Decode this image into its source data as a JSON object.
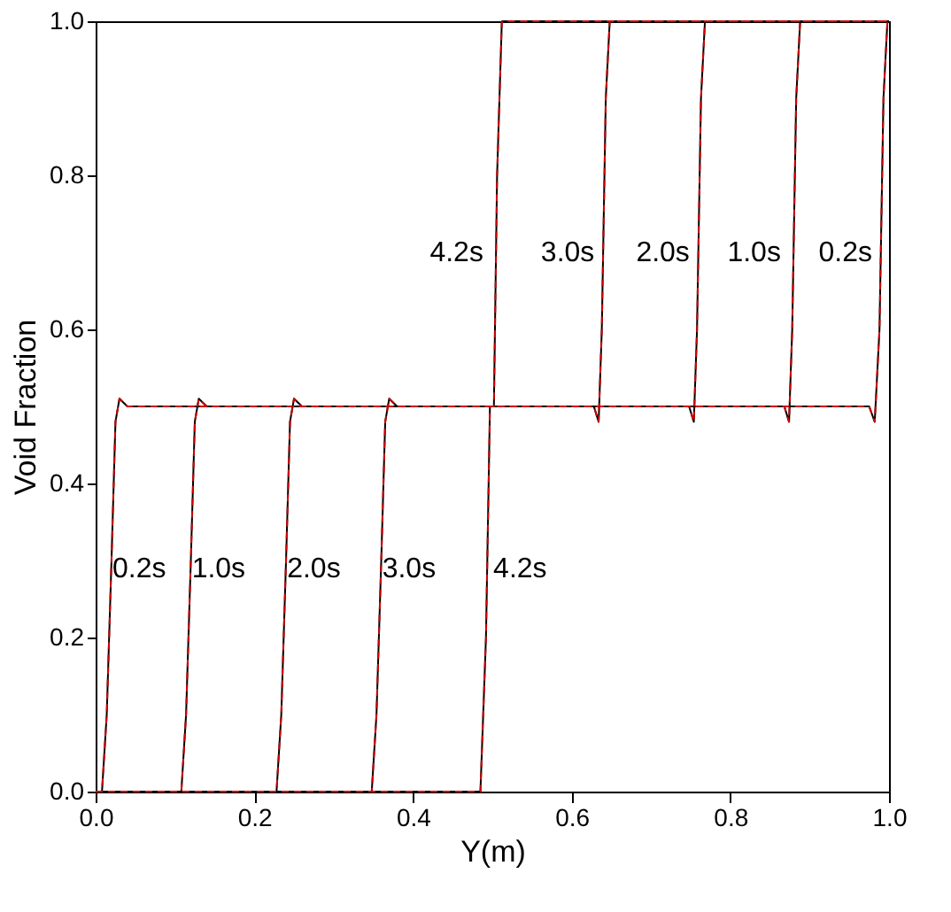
{
  "chart_data": {
    "type": "line",
    "xlabel": "Y(m)",
    "ylabel": "Void Fraction",
    "xlim": [
      0,
      1
    ],
    "ylim": [
      0,
      1
    ],
    "xticks": [
      {
        "value": 0,
        "label": "0.0"
      },
      0.2,
      0.4,
      0.6,
      0.8,
      {
        "value": 1,
        "label": "1.0"
      }
    ],
    "yticks": [
      {
        "value": 0,
        "label": "0.0"
      },
      0.2,
      0.4,
      0.6,
      0.8,
      {
        "value": 1,
        "label": "1.0"
      }
    ],
    "grid": false,
    "marker": "none",
    "series": [
      {
        "color": "#000000",
        "line_style": "solid",
        "x": [
          0,
          0.008,
          0.014,
          0.02,
          0.025,
          0.03,
          0.04,
          0.975,
          0.982,
          0.988,
          0.993,
          0.998,
          1
        ],
        "values": [
          0,
          0,
          0.1,
          0.3,
          0.48,
          0.51,
          0.5,
          0.5,
          0.48,
          0.6,
          0.9,
          1.0,
          1
        ]
      },
      {
        "color": "#000000",
        "line_style": "solid",
        "x": [
          0,
          0.108,
          0.114,
          0.12,
          0.125,
          0.13,
          0.14,
          0.868,
          0.874,
          0.878,
          0.883,
          0.888,
          1
        ],
        "values": [
          0,
          0,
          0.1,
          0.3,
          0.48,
          0.51,
          0.5,
          0.5,
          0.48,
          0.6,
          0.9,
          1.0,
          1
        ]
      },
      {
        "color": "#000000",
        "line_style": "solid",
        "x": [
          0,
          0.228,
          0.234,
          0.24,
          0.245,
          0.25,
          0.26,
          0.748,
          0.754,
          0.758,
          0.763,
          0.768,
          1
        ],
        "values": [
          0,
          0,
          0.1,
          0.3,
          0.48,
          0.51,
          0.5,
          0.5,
          0.48,
          0.6,
          0.9,
          1.0,
          1
        ]
      },
      {
        "color": "#000000",
        "line_style": "solid",
        "x": [
          0,
          0.348,
          0.354,
          0.36,
          0.365,
          0.37,
          0.38,
          0.628,
          0.634,
          0.638,
          0.643,
          0.648,
          1
        ],
        "values": [
          0,
          0,
          0.1,
          0.3,
          0.48,
          0.51,
          0.5,
          0.5,
          0.48,
          0.6,
          0.9,
          1.0,
          1
        ]
      },
      {
        "color": "#000000",
        "line_style": "solid",
        "x": [
          0,
          0.485,
          0.492,
          0.497,
          0.502,
          0.506,
          0.512,
          1
        ],
        "values": [
          0,
          0,
          0.2,
          0.5,
          0.5,
          0.8,
          1.0,
          1
        ]
      },
      {
        "color": "#cc0000",
        "line_style": "dashed",
        "x": [
          0,
          0.008,
          0.014,
          0.02,
          0.025,
          0.03,
          0.04,
          0.975,
          0.982,
          0.988,
          0.993,
          0.998,
          1
        ],
        "values": [
          0,
          0,
          0.1,
          0.3,
          0.48,
          0.51,
          0.5,
          0.5,
          0.48,
          0.6,
          0.9,
          1.0,
          1
        ]
      },
      {
        "color": "#cc0000",
        "line_style": "dashed",
        "x": [
          0,
          0.108,
          0.114,
          0.12,
          0.125,
          0.13,
          0.14,
          0.868,
          0.874,
          0.878,
          0.883,
          0.888,
          1
        ],
        "values": [
          0,
          0,
          0.1,
          0.3,
          0.48,
          0.51,
          0.5,
          0.5,
          0.48,
          0.6,
          0.9,
          1.0,
          1
        ]
      },
      {
        "color": "#cc0000",
        "line_style": "dashed",
        "x": [
          0,
          0.228,
          0.234,
          0.24,
          0.245,
          0.25,
          0.26,
          0.748,
          0.754,
          0.758,
          0.763,
          0.768,
          1
        ],
        "values": [
          0,
          0,
          0.1,
          0.3,
          0.48,
          0.51,
          0.5,
          0.5,
          0.48,
          0.6,
          0.9,
          1.0,
          1
        ]
      },
      {
        "color": "#cc0000",
        "line_style": "dashed",
        "x": [
          0,
          0.348,
          0.354,
          0.36,
          0.365,
          0.37,
          0.38,
          0.628,
          0.634,
          0.638,
          0.643,
          0.648,
          1
        ],
        "values": [
          0,
          0,
          0.1,
          0.3,
          0.48,
          0.51,
          0.5,
          0.5,
          0.48,
          0.6,
          0.9,
          1.0,
          1
        ]
      },
      {
        "color": "#cc0000",
        "line_style": "dashed",
        "x": [
          0,
          0.485,
          0.492,
          0.497,
          0.502,
          0.506,
          0.512,
          1
        ],
        "values": [
          0,
          0,
          0.2,
          0.5,
          0.5,
          0.8,
          1.0,
          1
        ]
      }
    ],
    "annotations": [
      "0.2s",
      "1.0s",
      "2.0s",
      "3.0s",
      "4.2s",
      "4.2s",
      "3.0s",
      "2.0s",
      "1.0s",
      "0.2s"
    ]
  }
}
